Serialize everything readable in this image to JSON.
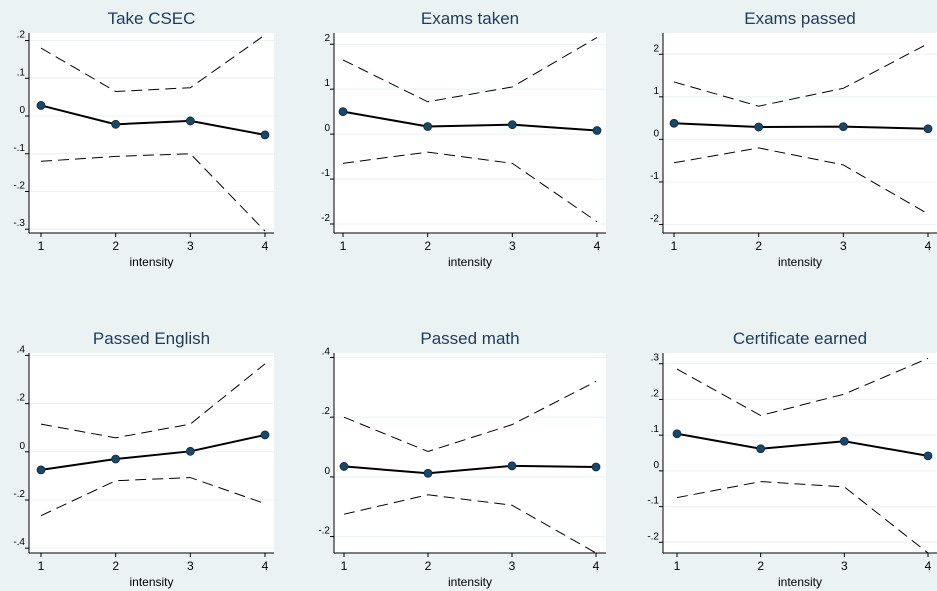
{
  "chart_data": [
    {
      "type": "line",
      "title": "Take CSEC",
      "xlabel": "intensity",
      "x": [
        1,
        2,
        3,
        4
      ],
      "xticks": [
        "1",
        "2",
        "3",
        "4"
      ],
      "ylim": [
        -0.31,
        0.22
      ],
      "yticks": [
        -0.3,
        -0.2,
        -0.1,
        0,
        0.1,
        0.2
      ],
      "ytick_labels": [
        "-.3",
        "-.2",
        "-.1",
        "0",
        ".1",
        ".2"
      ],
      "series": [
        {
          "role": "estimate",
          "style": "solid with markers",
          "values": [
            0.028,
            -0.022,
            -0.013,
            -0.05
          ]
        },
        {
          "role": "upper",
          "style": "dashed",
          "values": [
            0.18,
            0.065,
            0.075,
            0.215
          ]
        },
        {
          "role": "lower",
          "style": "dashed",
          "values": [
            -0.12,
            -0.107,
            -0.1,
            -0.305
          ]
        }
      ]
    },
    {
      "type": "line",
      "title": "Exams taken",
      "xlabel": "intensity",
      "x": [
        1,
        2,
        3,
        4
      ],
      "xticks": [
        "1",
        "2",
        "3",
        "4"
      ],
      "ylim": [
        -2.2,
        2.25
      ],
      "yticks": [
        -2,
        -1,
        0,
        1,
        2
      ],
      "ytick_labels": [
        "-2",
        "-1",
        "0",
        "1",
        "2"
      ],
      "series": [
        {
          "role": "estimate",
          "style": "solid with markers",
          "values": [
            0.5,
            0.17,
            0.21,
            0.08
          ]
        },
        {
          "role": "upper",
          "style": "dashed",
          "values": [
            1.65,
            0.72,
            1.05,
            2.15
          ]
        },
        {
          "role": "lower",
          "style": "dashed",
          "values": [
            -0.65,
            -0.4,
            -0.65,
            -1.95
          ]
        }
      ]
    },
    {
      "type": "line",
      "title": "Exams passed",
      "xlabel": "intensity",
      "x": [
        1,
        2,
        3,
        4
      ],
      "xticks": [
        "1",
        "2",
        "3",
        "4"
      ],
      "ylim": [
        -2.2,
        2.5
      ],
      "yticks": [
        -2,
        -1,
        0,
        1,
        2
      ],
      "ytick_labels": [
        "-2",
        "-1",
        "0",
        "1",
        "2"
      ],
      "series": [
        {
          "role": "estimate",
          "style": "solid with markers",
          "values": [
            0.38,
            0.29,
            0.3,
            0.25
          ]
        },
        {
          "role": "upper",
          "style": "dashed",
          "values": [
            1.35,
            0.78,
            1.2,
            2.25
          ]
        },
        {
          "role": "lower",
          "style": "dashed",
          "values": [
            -0.55,
            -0.2,
            -0.6,
            -1.75
          ]
        }
      ]
    },
    {
      "type": "line",
      "title": "Passed English",
      "xlabel": "intensity",
      "x": [
        1,
        2,
        3,
        4
      ],
      "xticks": [
        "1",
        "2",
        "3",
        "4"
      ],
      "ylim": [
        -0.42,
        0.41
      ],
      "yticks": [
        -0.4,
        -0.2,
        0,
        0.2,
        0.4
      ],
      "ytick_labels": [
        "-.4",
        "-.2",
        "0",
        ".2",
        ".4"
      ],
      "series": [
        {
          "role": "estimate",
          "style": "solid with markers",
          "values": [
            -0.075,
            -0.03,
            0.002,
            0.07
          ]
        },
        {
          "role": "upper",
          "style": "dashed",
          "values": [
            0.115,
            0.058,
            0.115,
            0.365
          ]
        },
        {
          "role": "lower",
          "style": "dashed",
          "values": [
            -0.265,
            -0.12,
            -0.107,
            -0.215
          ]
        }
      ]
    },
    {
      "type": "line",
      "title": "Passed math",
      "xlabel": "intensity",
      "x": [
        1,
        2,
        3,
        4
      ],
      "xticks": [
        "1",
        "2",
        "3",
        "4"
      ],
      "ylim": [
        -0.255,
        0.415
      ],
      "yticks": [
        -0.2,
        0,
        0.2,
        0.4
      ],
      "ytick_labels": [
        "-.2",
        "0",
        ".2",
        ".4"
      ],
      "series": [
        {
          "role": "estimate",
          "style": "solid with markers",
          "values": [
            0.035,
            0.012,
            0.037,
            0.033
          ]
        },
        {
          "role": "upper",
          "style": "dashed",
          "values": [
            0.2,
            0.085,
            0.175,
            0.32
          ]
        },
        {
          "role": "lower",
          "style": "dashed",
          "values": [
            -0.125,
            -0.06,
            -0.095,
            -0.255
          ]
        }
      ]
    },
    {
      "type": "line",
      "title": "Certificate earned",
      "xlabel": "intensity",
      "x": [
        1,
        2,
        3,
        4
      ],
      "xticks": [
        "1",
        "2",
        "3",
        "4"
      ],
      "ylim": [
        -0.23,
        0.33
      ],
      "yticks": [
        -0.2,
        -0.1,
        0,
        0.1,
        0.2,
        0.3
      ],
      "ytick_labels": [
        "-.2",
        "-.1",
        "0",
        ".1",
        ".2",
        ".3"
      ],
      "series": [
        {
          "role": "estimate",
          "style": "solid with markers",
          "values": [
            0.104,
            0.062,
            0.083,
            0.042
          ]
        },
        {
          "role": "upper",
          "style": "dashed",
          "values": [
            0.285,
            0.155,
            0.215,
            0.315
          ]
        },
        {
          "role": "lower",
          "style": "dashed",
          "values": [
            -0.075,
            -0.03,
            -0.045,
            -0.23
          ]
        }
      ]
    }
  ],
  "colors": {
    "background": "#eaf2f3",
    "plot_area": "#ffffff",
    "title": "#1e3c5a",
    "marker": "#1a4766",
    "line": "#000000"
  }
}
